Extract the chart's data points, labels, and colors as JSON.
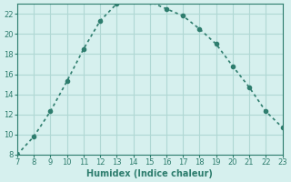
{
  "x": [
    7,
    8,
    9,
    10,
    11,
    12,
    13,
    14,
    15,
    16,
    17,
    18,
    19,
    20,
    21,
    22,
    23
  ],
  "y": [
    8,
    9.8,
    12.3,
    15.3,
    18.5,
    21.3,
    23.0,
    23.3,
    23.2,
    22.5,
    21.8,
    20.5,
    19.0,
    16.8,
    14.7,
    12.3,
    10.7
  ],
  "xlabel": "Humidex (Indice chaleur)",
  "xlim": [
    7,
    23
  ],
  "ylim": [
    8,
    23
  ],
  "yticks": [
    8,
    10,
    12,
    14,
    16,
    18,
    20,
    22
  ],
  "xticks": [
    7,
    8,
    9,
    10,
    11,
    12,
    13,
    14,
    15,
    16,
    17,
    18,
    19,
    20,
    21,
    22,
    23
  ],
  "line_color": "#2e7d6e",
  "marker_color": "#2e7d6e",
  "bg_color": "#d6f0ee",
  "grid_color": "#b0d8d4",
  "spine_color": "#2e7d6e"
}
